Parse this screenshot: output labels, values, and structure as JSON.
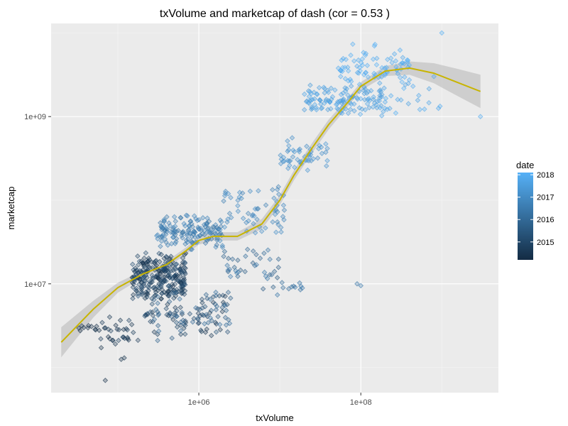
{
  "chart_data": {
    "type": "scatter",
    "title": "txVolume  and  marketcap  of  dash  (cor =  0.53 )",
    "xlabel": "txVolume",
    "ylabel": "marketcap",
    "x_scale": "log10",
    "y_scale": "log10",
    "xlim": [
      15000,
      5000000000
    ],
    "ylim": [
      500000,
      13000000000
    ],
    "x_ticks": [
      {
        "value": 1000000,
        "label": "1e+06"
      },
      {
        "value": 100000000,
        "label": "1e+08"
      }
    ],
    "y_ticks": [
      {
        "value": 10000000,
        "label": "1e+07"
      },
      {
        "value": 1000000000,
        "label": "1e+09"
      }
    ],
    "x_minor_breaks": [
      100000,
      10000000,
      1000000000
    ],
    "y_minor_breaks": [
      1000000,
      100000000,
      10000000000
    ],
    "grid": true,
    "background": "#ebebeb",
    "legend": {
      "title": "date",
      "position": "right",
      "type": "colorbar",
      "range": [
        2014.2,
        2018.1
      ],
      "ticks": [
        {
          "value": 2015,
          "label": "2015"
        },
        {
          "value": 2016,
          "label": "2016"
        },
        {
          "value": 2017,
          "label": "2017"
        },
        {
          "value": 2018,
          "label": "2018"
        }
      ],
      "color_low": "#132b43",
      "color_high": "#56b1f7"
    },
    "point_shape": "diamond",
    "point_alpha": 0.3,
    "series": [
      {
        "kind": "points",
        "clusters": [
          {
            "x": [
              30000,
              70000
            ],
            "y": [
              2500000,
              3300000
            ],
            "date": [
              2014.2,
              2014.4
            ],
            "n": 12
          },
          {
            "x": [
              55000,
              200000
            ],
            "y": [
              1500000,
              4500000
            ],
            "date": [
              2014.3,
              2014.8
            ],
            "n": 30
          },
          {
            "x": [
              150000,
              700000
            ],
            "y": [
              6000000,
              25000000
            ],
            "date": [
              2014.3,
              2015.4
            ],
            "n": 260
          },
          {
            "x": [
              200000,
              2500000
            ],
            "y": [
              2000000,
              10000000
            ],
            "date": [
              2014.5,
              2016.2
            ],
            "n": 130
          },
          {
            "x": [
              300000,
              2000000
            ],
            "y": [
              25000000,
              70000000
            ],
            "date": [
              2016.2,
              2016.9
            ],
            "n": 150
          },
          {
            "x": [
              2000000,
              10000000
            ],
            "y": [
              6000000,
              30000000
            ],
            "date": [
              2015.5,
              2016.5
            ],
            "n": 40
          },
          {
            "x": [
              10000000,
              20000000
            ],
            "y": [
              8000000,
              11000000
            ],
            "date": [
              2016.0,
              2016.6
            ],
            "n": 10
          },
          {
            "x": [
              2000000,
              12000000
            ],
            "y": [
              30000000,
              160000000
            ],
            "date": [
              2016.6,
              2017.1
            ],
            "n": 60
          },
          {
            "x": [
              10000000,
              40000000
            ],
            "y": [
              180000000,
              600000000
            ],
            "date": [
              2017.0,
              2017.4
            ],
            "n": 50
          },
          {
            "x": [
              20000000,
              200000000
            ],
            "y": [
              1000000000,
              2500000000
            ],
            "date": [
              2017.4,
              2017.8
            ],
            "n": 120
          },
          {
            "x": [
              50000000,
              400000000
            ],
            "y": [
              2000000000,
              8000000000
            ],
            "date": [
              2017.8,
              2018.1
            ],
            "n": 80
          },
          {
            "x": [
              150000000,
              1000000000
            ],
            "y": [
              900000000,
              4000000000
            ],
            "date": [
              2017.6,
              2018.0
            ],
            "n": 30
          }
        ],
        "extras": [
          {
            "x": 70000,
            "y": 700000,
            "date": 2014.3
          },
          {
            "x": 120000,
            "y": 1300000,
            "date": 2014.4
          },
          {
            "x": 110000,
            "y": 1250000,
            "date": 2014.4
          },
          {
            "x": 90000000,
            "y": 10000000,
            "date": 2016.3
          },
          {
            "x": 100000000,
            "y": 9500000,
            "date": 2016.4
          },
          {
            "x": 1000000000,
            "y": 10000000000,
            "date": 2018.0
          },
          {
            "x": 3000000000,
            "y": 1000000000,
            "date": 2017.9
          }
        ]
      },
      {
        "kind": "smooth",
        "name": "",
        "color": "#c8b400",
        "x": [
          20000,
          50000,
          100000,
          200000,
          400000,
          700000,
          1000000,
          1500000,
          3000000,
          6000000,
          10000000,
          15000000,
          25000000,
          40000000,
          70000000,
          100000000,
          200000000,
          400000000,
          800000000,
          1500000000,
          3000000000
        ],
        "y": [
          2000000,
          5000000,
          9000000,
          13000000,
          17000000,
          25000000,
          33000000,
          37000000,
          37000000,
          52000000,
          100000000,
          200000000,
          420000000,
          800000000,
          1500000000,
          2300000000,
          3500000000,
          3800000000,
          3300000000,
          2600000000,
          2000000000
        ],
        "band_halfwidth_log10": [
          0.18,
          0.1,
          0.06,
          0.04,
          0.04,
          0.04,
          0.05,
          0.05,
          0.05,
          0.06,
          0.06,
          0.06,
          0.06,
          0.06,
          0.05,
          0.05,
          0.06,
          0.08,
          0.12,
          0.16,
          0.2
        ]
      }
    ]
  }
}
